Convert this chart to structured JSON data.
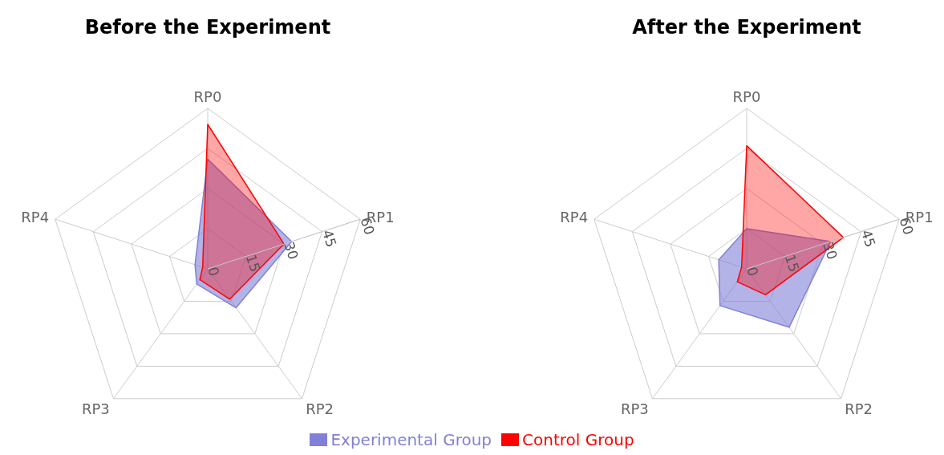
{
  "chart_data": [
    {
      "type": "radar",
      "title": "Before the Experiment",
      "categories": [
        "RP0",
        "RP1",
        "RP2",
        "RP3",
        "RP4"
      ],
      "ylim": [
        0,
        60
      ],
      "yticks": [
        0,
        15,
        30,
        45,
        60
      ],
      "legend": "bottom",
      "series": [
        {
          "name": "Experimental Group",
          "color": "#8080d8",
          "values": [
            41,
            33,
            18,
            7,
            5
          ]
        },
        {
          "name": "Control Group",
          "color": "#ff0000",
          "values": [
            54,
            30,
            14,
            5,
            2
          ]
        }
      ]
    },
    {
      "type": "radar",
      "title": "After the Experiment",
      "categories": [
        "RP0",
        "RP1",
        "RP2",
        "RP3",
        "RP4"
      ],
      "ylim": [
        0,
        60
      ],
      "yticks": [
        0,
        15,
        30,
        45,
        60
      ],
      "series": [
        {
          "color": "#8080d8",
          "values": [
            15,
            33,
            27,
            17,
            11
          ]
        },
        {
          "color": "#ff0000",
          "values": [
            46,
            38,
            12,
            6,
            2
          ]
        }
      ]
    }
  ]
}
